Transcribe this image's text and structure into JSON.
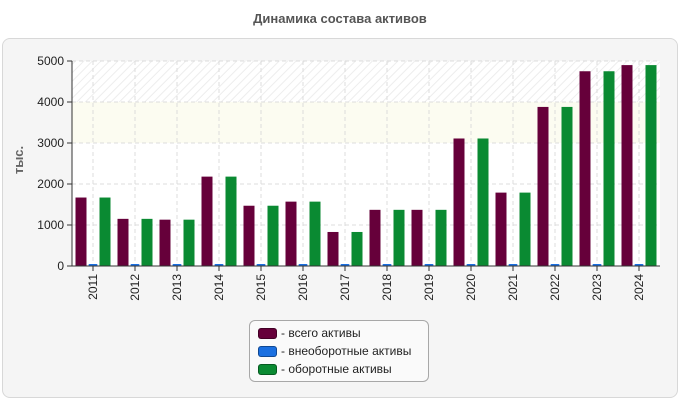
{
  "chart_data": {
    "type": "bar",
    "title": "Динамика состава активов",
    "ylabel": "тыс.",
    "xlabel": "",
    "categories": [
      "2011",
      "2012",
      "2013",
      "2014",
      "2015",
      "2016",
      "2017",
      "2018",
      "2019",
      "2020",
      "2021",
      "2022",
      "2023",
      "2024"
    ],
    "series": [
      {
        "name": "- всего активы",
        "color": "#66003a",
        "values": [
          1670,
          1150,
          1130,
          2180,
          1470,
          1570,
          830,
          1370,
          1370,
          3110,
          1790,
          3880,
          4750,
          4900
        ]
      },
      {
        "name": "- внеоборотные активы",
        "color": "#1a6fe0",
        "values": [
          0,
          0,
          0,
          0,
          0,
          0,
          0,
          0,
          0,
          0,
          0,
          0,
          0,
          0
        ]
      },
      {
        "name": "- оборотные активы",
        "color": "#0a8a32",
        "values": [
          1670,
          1150,
          1130,
          2180,
          1470,
          1570,
          830,
          1370,
          1370,
          3110,
          1790,
          3880,
          4750,
          4900
        ]
      }
    ],
    "ylim": [
      0,
      5000
    ],
    "yticks": [
      "0",
      "1000",
      "2000",
      "3000",
      "4000",
      "5000"
    ],
    "grid": true,
    "legend_position": "bottom-center"
  }
}
